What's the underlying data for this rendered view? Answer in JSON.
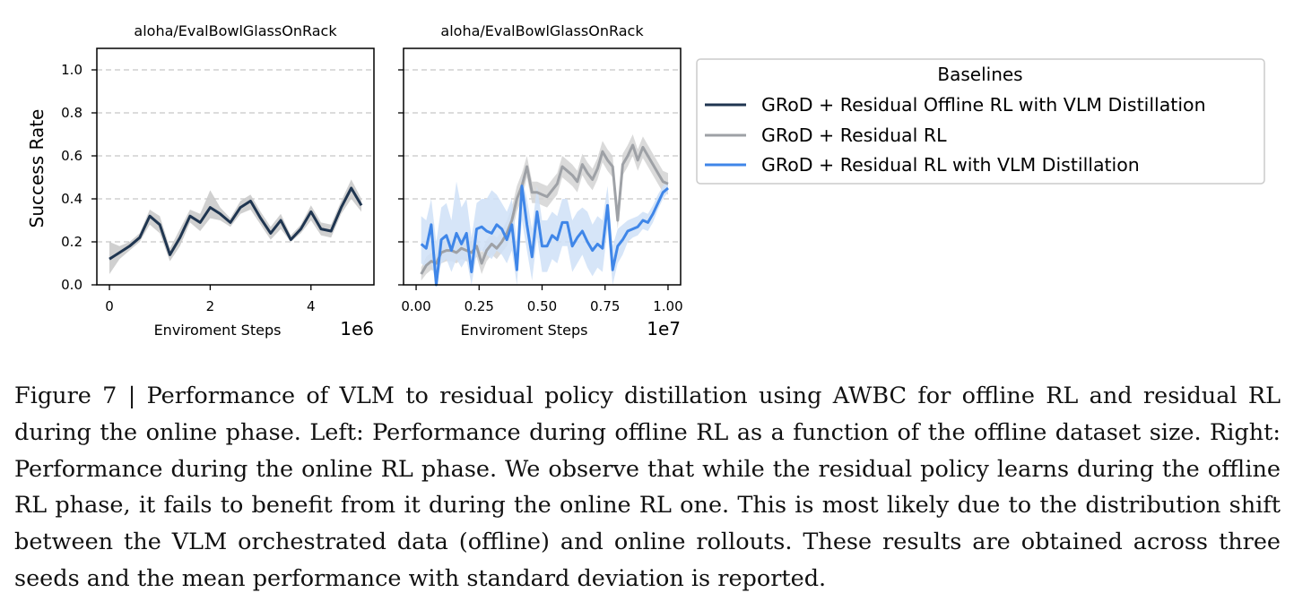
{
  "legend": {
    "title": "Baselines",
    "entries": [
      {
        "label": "GRoD + Residual Offline RL with VLM Distillation",
        "color": "#1f3550"
      },
      {
        "label": "GRoD + Residual RL",
        "color": "#9ea1a6"
      },
      {
        "label": "GRoD + Residual RL with VLM Distillation",
        "color": "#3f86e8"
      }
    ]
  },
  "caption": "Figure 7 | Performance of VLM to residual policy distillation using AWBC for offline RL and residual RL during the online phase. Left: Performance during offline RL as a function of the offline dataset size. Right: Performance during the online RL phase. We observe that while the residual policy learns during the offline RL phase, it fails to benefit from it during the online RL one. This is most likely due to the distribution shift between the VLM orchestrated data (offline) and online rollouts. These results are obtained across three seeds and the mean performance with standard deviation is reported.",
  "chart_data": [
    {
      "type": "line",
      "title": "aloha/EvalBowlGlassOnRack",
      "xlabel": "Enviroment Steps",
      "ylabel": "Success Rate",
      "x_offset_label": "1e6",
      "xlim": [
        -0.25,
        5.25
      ],
      "ylim": [
        0,
        1.1
      ],
      "xticks": [
        0,
        2,
        4
      ],
      "xtick_labels": [
        "0",
        "2",
        "4"
      ],
      "yticks": [
        0.0,
        0.2,
        0.4,
        0.6,
        0.8,
        1.0
      ],
      "ytick_labels": [
        "0.0",
        "0.2",
        "0.4",
        "0.6",
        "0.8",
        "1.0"
      ],
      "grid": "y-dashed",
      "series": [
        {
          "name": "GRoD + Residual Offline RL with VLM Distillation",
          "color": "#1f3550",
          "band_color": "#c8c8c8",
          "x": [
            0,
            0.2,
            0.4,
            0.6,
            0.8,
            1.0,
            1.2,
            1.4,
            1.6,
            1.8,
            2.0,
            2.2,
            2.4,
            2.6,
            2.8,
            3.0,
            3.2,
            3.4,
            3.6,
            3.8,
            4.0,
            4.2,
            4.4,
            4.6,
            4.8,
            5.0
          ],
          "y": [
            0.12,
            0.15,
            0.18,
            0.22,
            0.32,
            0.28,
            0.14,
            0.22,
            0.32,
            0.29,
            0.36,
            0.33,
            0.29,
            0.36,
            0.39,
            0.31,
            0.24,
            0.3,
            0.21,
            0.26,
            0.34,
            0.26,
            0.25,
            0.36,
            0.45,
            0.37
          ],
          "y_lower": [
            0.05,
            0.12,
            0.16,
            0.2,
            0.28,
            0.24,
            0.11,
            0.18,
            0.29,
            0.25,
            0.31,
            0.3,
            0.27,
            0.33,
            0.35,
            0.28,
            0.21,
            0.26,
            0.2,
            0.24,
            0.3,
            0.23,
            0.22,
            0.33,
            0.4,
            0.34
          ],
          "y_upper": [
            0.2,
            0.18,
            0.2,
            0.24,
            0.35,
            0.32,
            0.17,
            0.26,
            0.35,
            0.33,
            0.44,
            0.36,
            0.31,
            0.39,
            0.42,
            0.34,
            0.27,
            0.33,
            0.23,
            0.28,
            0.37,
            0.29,
            0.28,
            0.39,
            0.49,
            0.4
          ]
        }
      ]
    },
    {
      "type": "line",
      "title": "aloha/EvalBowlGlassOnRack",
      "xlabel": "Enviroment Steps",
      "x_offset_label": "1e7",
      "xlim": [
        -0.05,
        1.05
      ],
      "ylim": [
        0,
        1.1
      ],
      "xticks": [
        0.0,
        0.25,
        0.5,
        0.75,
        1.0
      ],
      "xtick_labels": [
        "0.00",
        "0.25",
        "0.50",
        "0.75",
        "1.00"
      ],
      "grid": "y-dashed",
      "series": [
        {
          "name": "GRoD + Residual RL",
          "color": "#9ea1a6",
          "band_color": "#d4d4d4",
          "x": [
            0.02,
            0.04,
            0.06,
            0.08,
            0.1,
            0.12,
            0.14,
            0.16,
            0.18,
            0.2,
            0.22,
            0.24,
            0.26,
            0.28,
            0.3,
            0.32,
            0.34,
            0.36,
            0.38,
            0.4,
            0.42,
            0.44,
            0.46,
            0.48,
            0.5,
            0.52,
            0.54,
            0.56,
            0.58,
            0.6,
            0.62,
            0.64,
            0.66,
            0.68,
            0.7,
            0.72,
            0.74,
            0.76,
            0.78,
            0.8,
            0.82,
            0.84,
            0.86,
            0.88,
            0.9,
            0.92,
            0.94,
            0.96,
            0.98,
            1.0
          ],
          "y": [
            0.05,
            0.09,
            0.11,
            0.1,
            0.15,
            0.16,
            0.16,
            0.15,
            0.17,
            0.16,
            0.15,
            0.18,
            0.1,
            0.16,
            0.19,
            0.17,
            0.2,
            0.24,
            0.3,
            0.4,
            0.46,
            0.55,
            0.43,
            0.43,
            0.42,
            0.41,
            0.44,
            0.47,
            0.55,
            0.53,
            0.51,
            0.48,
            0.56,
            0.52,
            0.49,
            0.54,
            0.62,
            0.58,
            0.55,
            0.3,
            0.56,
            0.6,
            0.65,
            0.58,
            0.64,
            0.6,
            0.56,
            0.52,
            0.48,
            0.47
          ],
          "y_lower": [
            0.02,
            0.05,
            0.07,
            0.06,
            0.1,
            0.11,
            0.11,
            0.1,
            0.12,
            0.11,
            0.1,
            0.13,
            0.05,
            0.11,
            0.14,
            0.12,
            0.15,
            0.18,
            0.24,
            0.34,
            0.4,
            0.5,
            0.38,
            0.38,
            0.37,
            0.36,
            0.39,
            0.42,
            0.5,
            0.48,
            0.46,
            0.43,
            0.51,
            0.47,
            0.44,
            0.49,
            0.57,
            0.53,
            0.5,
            0.26,
            0.51,
            0.55,
            0.6,
            0.53,
            0.59,
            0.55,
            0.51,
            0.47,
            0.43,
            0.42
          ],
          "y_upper": [
            0.08,
            0.13,
            0.15,
            0.14,
            0.2,
            0.21,
            0.21,
            0.2,
            0.22,
            0.21,
            0.2,
            0.23,
            0.15,
            0.21,
            0.24,
            0.22,
            0.25,
            0.3,
            0.36,
            0.46,
            0.52,
            0.6,
            0.48,
            0.48,
            0.47,
            0.46,
            0.49,
            0.52,
            0.6,
            0.58,
            0.56,
            0.53,
            0.61,
            0.57,
            0.54,
            0.59,
            0.67,
            0.63,
            0.6,
            0.34,
            0.61,
            0.65,
            0.7,
            0.63,
            0.69,
            0.65,
            0.61,
            0.57,
            0.53,
            0.52
          ]
        },
        {
          "name": "GRoD + Residual RL with VLM Distillation",
          "color": "#3f86e8",
          "band_color": "#cfe0f7",
          "x": [
            0.02,
            0.04,
            0.06,
            0.08,
            0.1,
            0.12,
            0.14,
            0.16,
            0.18,
            0.2,
            0.22,
            0.24,
            0.26,
            0.28,
            0.3,
            0.32,
            0.34,
            0.36,
            0.38,
            0.4,
            0.42,
            0.44,
            0.46,
            0.48,
            0.5,
            0.52,
            0.54,
            0.56,
            0.58,
            0.6,
            0.62,
            0.64,
            0.66,
            0.68,
            0.7,
            0.72,
            0.74,
            0.76,
            0.78,
            0.8,
            0.82,
            0.84,
            0.86,
            0.88,
            0.9,
            0.92,
            0.94,
            0.96,
            0.98,
            1.0
          ],
          "y": [
            0.19,
            0.17,
            0.28,
            0.0,
            0.21,
            0.23,
            0.16,
            0.24,
            0.19,
            0.24,
            0.06,
            0.26,
            0.27,
            0.25,
            0.24,
            0.28,
            0.26,
            0.21,
            0.28,
            0.07,
            0.46,
            0.28,
            0.13,
            0.34,
            0.18,
            0.18,
            0.23,
            0.21,
            0.29,
            0.29,
            0.18,
            0.22,
            0.25,
            0.2,
            0.16,
            0.19,
            0.17,
            0.37,
            0.07,
            0.18,
            0.21,
            0.25,
            0.26,
            0.27,
            0.3,
            0.29,
            0.33,
            0.38,
            0.43,
            0.45
          ],
          "y_lower": [
            0.1,
            0.08,
            0.1,
            0.0,
            0.1,
            0.12,
            0.06,
            0.12,
            0.08,
            0.12,
            0.0,
            0.14,
            0.16,
            0.14,
            0.12,
            0.16,
            0.14,
            0.1,
            0.16,
            0.0,
            0.3,
            0.16,
            0.02,
            0.22,
            0.06,
            0.06,
            0.12,
            0.1,
            0.18,
            0.18,
            0.06,
            0.1,
            0.14,
            0.08,
            0.04,
            0.08,
            0.06,
            0.26,
            0.0,
            0.1,
            0.14,
            0.2,
            0.22,
            0.23,
            0.26,
            0.25,
            0.29,
            0.35,
            0.4,
            0.43
          ],
          "y_upper": [
            0.32,
            0.3,
            0.4,
            0.2,
            0.36,
            0.38,
            0.3,
            0.48,
            0.36,
            0.4,
            0.22,
            0.38,
            0.4,
            0.4,
            0.44,
            0.42,
            0.38,
            0.34,
            0.4,
            0.2,
            0.5,
            0.4,
            0.26,
            0.46,
            0.3,
            0.3,
            0.34,
            0.32,
            0.4,
            0.4,
            0.3,
            0.34,
            0.36,
            0.34,
            0.28,
            0.32,
            0.3,
            0.46,
            0.18,
            0.26,
            0.28,
            0.3,
            0.31,
            0.32,
            0.34,
            0.33,
            0.37,
            0.42,
            0.46,
            0.48
          ]
        }
      ]
    }
  ]
}
